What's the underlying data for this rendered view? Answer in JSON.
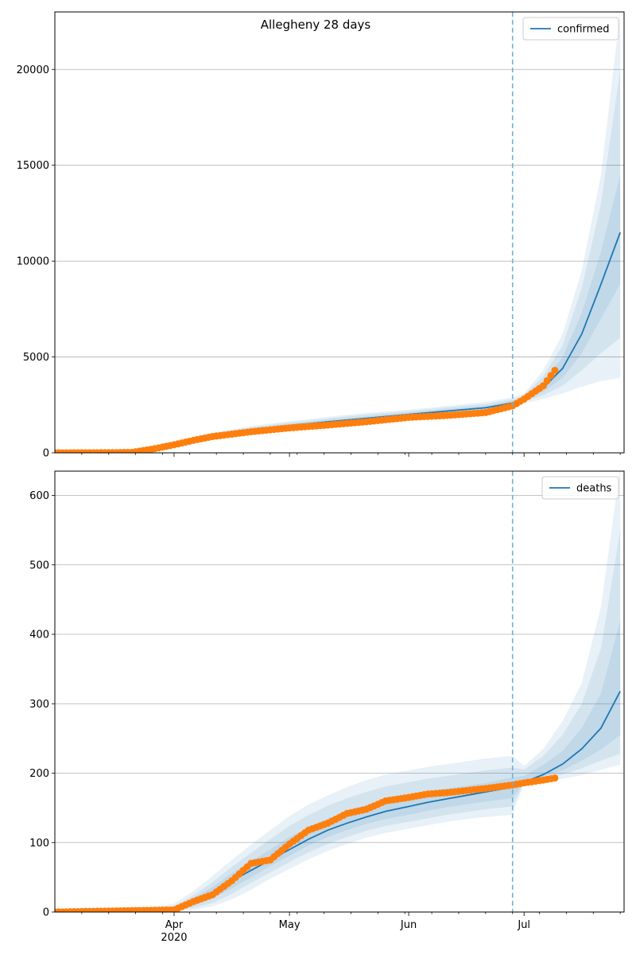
{
  "figure": {
    "title": "Allegheny 28 days"
  },
  "colors": {
    "line": "#1f77b4",
    "points": "#ff7f0e",
    "band": "#1f77b4",
    "grid": "#b0b0b0",
    "vline": "#6baed6"
  },
  "chart_data": [
    {
      "type": "line",
      "series": [
        {
          "name": "confirmed",
          "x": [
            "2020-03-01",
            "2020-03-11",
            "2020-03-21",
            "2020-03-26",
            "2020-04-01",
            "2020-04-11",
            "2020-04-21",
            "2020-05-01",
            "2020-05-11",
            "2020-05-21",
            "2020-06-01",
            "2020-06-11",
            "2020-06-21",
            "2020-06-28",
            "2020-07-01",
            "2020-07-06",
            "2020-07-11",
            "2020-07-16",
            "2020-07-21",
            "2020-07-26"
          ],
          "values": [
            0,
            0,
            20,
            120,
            420,
            900,
            1200,
            1420,
            1620,
            1800,
            2000,
            2180,
            2350,
            2600,
            2800,
            3400,
            4400,
            6200,
            8800,
            11500
          ]
        }
      ],
      "bands": [
        {
          "lower": [
            0,
            0,
            10,
            60,
            300,
            750,
            1000,
            1200,
            1380,
            1550,
            1750,
            1920,
            2080,
            2300,
            2600,
            2800,
            3100,
            3450,
            3750,
            3900
          ],
          "upper": [
            5,
            10,
            45,
            200,
            550,
            1050,
            1400,
            1650,
            1880,
            2080,
            2250,
            2450,
            2650,
            2900,
            3100,
            4300,
            6200,
            9500,
            14500,
            23000
          ]
        },
        {
          "lower": [
            0,
            0,
            14,
            80,
            340,
            800,
            1070,
            1280,
            1460,
            1640,
            1840,
            2010,
            2170,
            2400,
            2680,
            3000,
            3500,
            4300,
            5200,
            6000
          ],
          "upper": [
            3,
            6,
            35,
            170,
            500,
            1000,
            1330,
            1580,
            1800,
            2000,
            2180,
            2370,
            2550,
            2800,
            3000,
            4000,
            5600,
            8600,
            13000,
            20000
          ]
        },
        {
          "lower": [
            0,
            0,
            16,
            95,
            380,
            850,
            1130,
            1340,
            1530,
            1710,
            1910,
            2080,
            2250,
            2480,
            2740,
            3200,
            3900,
            5200,
            7000,
            8800
          ],
          "upper": [
            2,
            4,
            28,
            150,
            470,
            950,
            1270,
            1500,
            1720,
            1900,
            2100,
            2280,
            2450,
            2720,
            2900,
            3700,
            5000,
            7300,
            10500,
            14500
          ]
        }
      ],
      "points": {
        "x": [
          "2020-03-01",
          "2020-03-16",
          "2020-03-21",
          "2020-03-26",
          "2020-04-01",
          "2020-04-06",
          "2020-04-11",
          "2020-04-21",
          "2020-05-01",
          "2020-05-11",
          "2020-05-21",
          "2020-06-01",
          "2020-06-11",
          "2020-06-21",
          "2020-06-28",
          "2020-07-01",
          "2020-07-06",
          "2020-07-09"
        ],
        "values": [
          0,
          10,
          25,
          180,
          420,
          650,
          850,
          1100,
          1300,
          1450,
          1620,
          1850,
          1950,
          2100,
          2450,
          2800,
          3500,
          4300
        ]
      },
      "ylim": [
        0,
        23000
      ],
      "yticks": [
        0,
        5000,
        10000,
        15000,
        20000
      ],
      "xlim": [
        "2020-03-01",
        "2020-07-27"
      ],
      "forecast_start": "2020-06-28",
      "grid": "y",
      "legend": "top-right",
      "xlabel": "",
      "ylabel": ""
    },
    {
      "type": "line",
      "series": [
        {
          "name": "deaths",
          "x": [
            "2020-03-01",
            "2020-03-21",
            "2020-04-01",
            "2020-04-06",
            "2020-04-11",
            "2020-04-16",
            "2020-04-21",
            "2020-04-26",
            "2020-05-01",
            "2020-05-06",
            "2020-05-11",
            "2020-05-16",
            "2020-05-21",
            "2020-05-26",
            "2020-06-01",
            "2020-06-06",
            "2020-06-11",
            "2020-06-16",
            "2020-06-21",
            "2020-06-28",
            "2020-07-01",
            "2020-07-06",
            "2020-07-11",
            "2020-07-16",
            "2020-07-21",
            "2020-07-26"
          ],
          "values": [
            0,
            1,
            5,
            15,
            28,
            45,
            60,
            75,
            90,
            105,
            118,
            128,
            137,
            145,
            152,
            158,
            163,
            168,
            173,
            180,
            187,
            198,
            213,
            235,
            265,
            318
          ]
        }
      ],
      "bands": [
        {
          "lower": [
            0,
            0,
            1,
            3,
            8,
            18,
            32,
            48,
            62,
            76,
            88,
            98,
            107,
            114,
            120,
            125,
            130,
            134,
            137,
            140,
            185,
            188,
            192,
            197,
            205,
            212
          ],
          "upper": [
            0,
            3,
            12,
            30,
            52,
            75,
            97,
            118,
            138,
            155,
            168,
            180,
            190,
            198,
            204,
            209,
            213,
            217,
            221,
            225,
            210,
            235,
            275,
            330,
            440,
            640
          ]
        },
        {
          "lower": [
            0,
            0,
            2,
            6,
            13,
            26,
            42,
            57,
            72,
            86,
            98,
            108,
            117,
            124,
            130,
            135,
            140,
            144,
            148,
            152,
            186,
            192,
            198,
            207,
            218,
            228
          ],
          "upper": [
            0,
            2,
            9,
            24,
            43,
            65,
            85,
            105,
            124,
            140,
            153,
            164,
            173,
            181,
            187,
            192,
            196,
            200,
            204,
            208,
            205,
            225,
            255,
            300,
            380,
            550
          ]
        },
        {
          "lower": [
            0,
            1,
            3,
            9,
            19,
            34,
            50,
            66,
            81,
            96,
            108,
            118,
            127,
            134,
            140,
            146,
            151,
            155,
            159,
            164,
            187,
            195,
            204,
            218,
            234,
            255
          ],
          "upper": [
            0,
            2,
            7,
            20,
            36,
            56,
            73,
            90,
            108,
            122,
            135,
            145,
            154,
            162,
            168,
            173,
            178,
            182,
            186,
            194,
            196,
            212,
            232,
            265,
            315,
            420
          ]
        }
      ],
      "points": {
        "x": [
          "2020-03-01",
          "2020-03-21",
          "2020-04-01",
          "2020-04-06",
          "2020-04-11",
          "2020-04-16",
          "2020-04-21",
          "2020-04-26",
          "2020-05-01",
          "2020-05-06",
          "2020-05-11",
          "2020-05-16",
          "2020-05-21",
          "2020-05-26",
          "2020-06-01",
          "2020-06-06",
          "2020-06-11",
          "2020-06-16",
          "2020-06-21",
          "2020-06-28",
          "2020-07-01",
          "2020-07-06",
          "2020-07-09"
        ],
        "values": [
          0,
          2,
          3,
          15,
          25,
          45,
          70,
          75,
          98,
          118,
          128,
          142,
          148,
          160,
          165,
          170,
          172,
          175,
          178,
          183,
          186,
          190,
          193
        ]
      },
      "ylim": [
        0,
        635
      ],
      "yticks": [
        0,
        100,
        200,
        300,
        400,
        500,
        600
      ],
      "xlim": [
        "2020-03-01",
        "2020-07-27"
      ],
      "xticks": [
        {
          "date": "2020-04-01",
          "label": "Apr",
          "sublabel": "2020"
        },
        {
          "date": "2020-05-01",
          "label": "May",
          "sublabel": ""
        },
        {
          "date": "2020-06-01",
          "label": "Jun",
          "sublabel": ""
        },
        {
          "date": "2020-07-01",
          "label": "Jul",
          "sublabel": ""
        }
      ],
      "forecast_start": "2020-06-28",
      "grid": "y",
      "legend": "top-right",
      "xlabel": "",
      "ylabel": ""
    }
  ]
}
